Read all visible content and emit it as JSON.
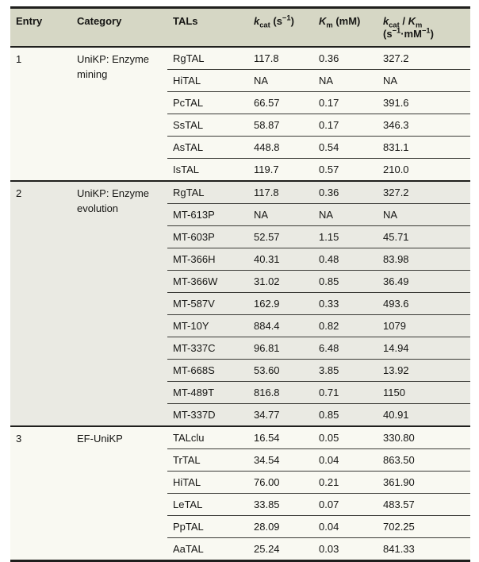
{
  "table": {
    "columns": {
      "entry": "Entry",
      "category": "Category",
      "tals": "TALs",
      "kcat": {
        "symbol": "k",
        "symbol_sub": "cat",
        "unit_open": " (s",
        "unit_sup": "−1",
        "unit_close": ")"
      },
      "km": {
        "symbol": "K",
        "symbol_sub": "m",
        "unit": " (mM)"
      },
      "kcat_km": {
        "symbol1": "k",
        "symbol1_sub": "cat",
        "separator": " / ",
        "symbol2": "K",
        "symbol2_sub": "m",
        "unit_open": "(s",
        "unit_sup1": "−1",
        "unit_mid": "·mM",
        "unit_sup2": "−1",
        "unit_close": ")"
      }
    },
    "colors": {
      "header_bg": "#d6d7c5",
      "group_light_bg": "#f9f9f2",
      "group_shaded_bg": "#eaeae3",
      "rule_heavy": "#1f1f1d",
      "rule_thin": "#3a3a36",
      "text": "#161614",
      "page_bg": "#ffffff"
    },
    "entries": [
      {
        "entry": "1",
        "category": "UniKP: Enzyme mining",
        "rows": [
          {
            "tal": "RgTAL",
            "kcat": "117.8",
            "km": "0.36",
            "ratio": "327.2"
          },
          {
            "tal": "HiTAL",
            "kcat": "NA",
            "km": "NA",
            "ratio": "NA"
          },
          {
            "tal": "PcTAL",
            "kcat": "66.57",
            "km": "0.17",
            "ratio": "391.6"
          },
          {
            "tal": "SsTAL",
            "kcat": "58.87",
            "km": "0.17",
            "ratio": "346.3"
          },
          {
            "tal": "AsTAL",
            "kcat": "448.8",
            "km": "0.54",
            "ratio": "831.1"
          },
          {
            "tal": "IsTAL",
            "kcat": "119.7",
            "km": "0.57",
            "ratio": "210.0"
          }
        ]
      },
      {
        "entry": "2",
        "category": "UniKP: Enzyme evolution",
        "rows": [
          {
            "tal": "RgTAL",
            "kcat": "117.8",
            "km": "0.36",
            "ratio": "327.2"
          },
          {
            "tal": "MT-613P",
            "kcat": "NA",
            "km": "NA",
            "ratio": "NA"
          },
          {
            "tal": "MT-603P",
            "kcat": "52.57",
            "km": "1.15",
            "ratio": "45.71"
          },
          {
            "tal": "MT-366H",
            "kcat": "40.31",
            "km": "0.48",
            "ratio": "83.98"
          },
          {
            "tal": "MT-366W",
            "kcat": "31.02",
            "km": "0.85",
            "ratio": "36.49"
          },
          {
            "tal": "MT-587V",
            "kcat": "162.9",
            "km": "0.33",
            "ratio": "493.6"
          },
          {
            "tal": "MT-10Y",
            "kcat": "884.4",
            "km": "0.82",
            "ratio": "1079"
          },
          {
            "tal": "MT-337C",
            "kcat": "96.81",
            "km": "6.48",
            "ratio": "14.94"
          },
          {
            "tal": "MT-668S",
            "kcat": "53.60",
            "km": "3.85",
            "ratio": "13.92"
          },
          {
            "tal": "MT-489T",
            "kcat": "816.8",
            "km": "0.71",
            "ratio": "1150"
          },
          {
            "tal": "MT-337D",
            "kcat": "34.77",
            "km": "0.85",
            "ratio": "40.91"
          }
        ]
      },
      {
        "entry": "3",
        "category": "EF-UniKP",
        "rows": [
          {
            "tal": "TALclu",
            "kcat": "16.54",
            "km": "0.05",
            "ratio": "330.80"
          },
          {
            "tal": "TrTAL",
            "kcat": "34.54",
            "km": "0.04",
            "ratio": "863.50"
          },
          {
            "tal": "HiTAL",
            "kcat": "76.00",
            "km": "0.21",
            "ratio": "361.90"
          },
          {
            "tal": "LeTAL",
            "kcat": "33.85",
            "km": "0.07",
            "ratio": "483.57"
          },
          {
            "tal": "PpTAL",
            "kcat": "28.09",
            "km": "0.04",
            "ratio": "702.25"
          },
          {
            "tal": "AaTAL",
            "kcat": "25.24",
            "km": "0.03",
            "ratio": "841.33"
          }
        ]
      }
    ]
  }
}
